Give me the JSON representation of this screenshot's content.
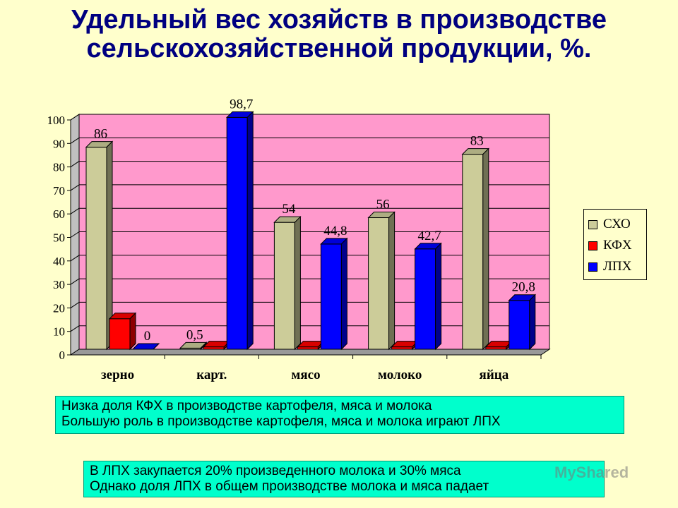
{
  "title": "Удельный вес хозяйств в производстве сельскохозяйственной продукции, %.",
  "colors": {
    "background": "#ffffcc",
    "plot_area": "#ff99cc",
    "note_box": "#00ffcc",
    "title": "#000080"
  },
  "chart_data": {
    "type": "bar",
    "categories": [
      "зерно",
      "карт.",
      "мясо",
      "молоко",
      "яйца"
    ],
    "series": [
      {
        "name": "СХО",
        "color": "#cccc99",
        "values": [
          86,
          0.5,
          54,
          56,
          83
        ],
        "labels": [
          "86",
          "0,5",
          "54",
          "56",
          "83"
        ]
      },
      {
        "name": "КФХ",
        "color": "#ff0000",
        "values": [
          13,
          1,
          1,
          1,
          1
        ],
        "labels": [
          "",
          "",
          "",
          "",
          ""
        ]
      },
      {
        "name": "ЛПХ",
        "color": "#0000ff",
        "values": [
          0,
          98.7,
          44.8,
          42.7,
          20.8
        ],
        "labels": [
          "0",
          "98,7",
          "44,8",
          "42,7",
          "20,8"
        ]
      }
    ],
    "ylim": [
      0,
      100
    ],
    "yticks": [
      0,
      10,
      20,
      30,
      40,
      50,
      60,
      70,
      80,
      90,
      100
    ],
    "grid": true,
    "legend": "right"
  },
  "notes": [
    {
      "lines": [
        "Низка доля КФХ в производстве картофеля, мяса и молока",
        "Большую роль в производстве картофеля, мяса и молока играют ЛПХ"
      ]
    },
    {
      "lines": [
        "В ЛПХ закупается 20% произведенного молока и 30% мяса",
        "Однако доля ЛПХ в общем производстве молока и мяса падает"
      ]
    }
  ],
  "watermark": "MyShared"
}
